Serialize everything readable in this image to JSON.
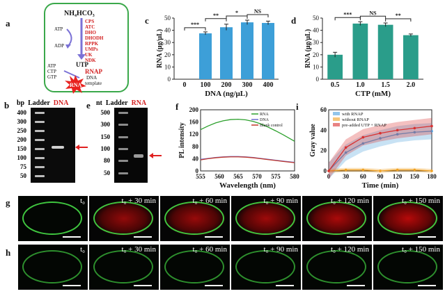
{
  "panel_labels": {
    "a": "a",
    "b": "b",
    "c": "c",
    "d": "d",
    "e": "e",
    "f": "f",
    "g": "g",
    "h": "h",
    "i": "i"
  },
  "panel_a": {
    "substrate": "NH₄HCO₃",
    "enzymes": [
      "CPS",
      "ATC",
      "DHO",
      "DHODH",
      "RPPK",
      "UMPs",
      "UK",
      "NDK"
    ],
    "atp": "ATP",
    "adp": "ADP",
    "utp": "UTP",
    "ntps": [
      "ATP",
      "CTP",
      "GTP"
    ],
    "rnap": "RNAP",
    "dna": "DNA",
    "template": "template",
    "rna": "RNA"
  },
  "panel_b": {
    "bp": "bp",
    "ladder": "Ladder",
    "sample": "DNA",
    "ticks": [
      "400",
      "300",
      "250",
      "200",
      "150",
      "100",
      "75",
      "50"
    ]
  },
  "panel_e": {
    "nt": "nt",
    "ladder": "Ladder",
    "sample": "RNA",
    "ticks": [
      "500",
      "300",
      "150",
      "100",
      "80",
      "50"
    ]
  },
  "chart_data": [
    {
      "id": "c",
      "type": "bar",
      "categories": [
        "0",
        "100",
        "200",
        "300",
        "400"
      ],
      "values": [
        0,
        37.5,
        42.5,
        46.5,
        46.0
      ],
      "errors": [
        0,
        1.2,
        2.5,
        1.8,
        1.5
      ],
      "xlabel": "DNA (ng/μL)",
      "ylabel": "RNA (μg/μL)",
      "ylim": [
        0,
        50
      ],
      "yticks": [
        "0",
        "10",
        "20",
        "30",
        "40",
        "50"
      ],
      "color": "#3d9fd8",
      "significance": [
        "***",
        "**",
        "*",
        "NS"
      ]
    },
    {
      "id": "d",
      "type": "bar",
      "categories": [
        "0.5",
        "1.0",
        "1.5",
        "2.0"
      ],
      "values": [
        20,
        45.5,
        44.5,
        36
      ],
      "errors": [
        2.0,
        1.5,
        1.5,
        1.0
      ],
      "xlabel": "CTP (mM)",
      "ylabel": "RNA (μg/μL)",
      "ylim": [
        0,
        50
      ],
      "yticks": [
        "0",
        "10",
        "20",
        "30",
        "40",
        "50"
      ],
      "color": "#2a9d8a",
      "significance": [
        "***",
        "NS",
        "**"
      ]
    },
    {
      "id": "f",
      "type": "line",
      "xlabel": "Wavelength (nm)",
      "ylabel": "PL intensity",
      "xlim": [
        555,
        580
      ],
      "ylim": [
        0,
        200
      ],
      "xticks": [
        "555",
        "560",
        "565",
        "570",
        "575",
        "580"
      ],
      "yticks": [
        "0",
        "20",
        "40",
        "60",
        "80",
        "100",
        "120",
        "140",
        "160",
        "180",
        "200"
      ],
      "legend": [
        "RNA",
        "DNA",
        "Blank control"
      ],
      "series": [
        {
          "name": "RNA",
          "color": "#2ca02c",
          "x": [
            555,
            557,
            559,
            561,
            563,
            565,
            567,
            569,
            571,
            573,
            575,
            577,
            580
          ],
          "y": [
            135,
            147,
            157,
            164,
            168,
            169,
            167,
            162,
            154,
            143,
            131,
            118,
            97
          ]
        },
        {
          "name": "DNA",
          "color": "#6a6ad0",
          "x": [
            555,
            557,
            559,
            561,
            563,
            565,
            567,
            569,
            571,
            573,
            575,
            577,
            580
          ],
          "y": [
            38,
            41,
            44,
            46,
            47,
            47,
            46,
            44,
            41,
            38,
            35,
            32,
            28
          ]
        },
        {
          "name": "Blank control",
          "color": "#c0392b",
          "x": [
            555,
            557,
            559,
            561,
            563,
            565,
            567,
            569,
            571,
            573,
            575,
            577,
            580
          ],
          "y": [
            36,
            40,
            43,
            45,
            46,
            46,
            45,
            43,
            40,
            37,
            34,
            31,
            27
          ]
        }
      ]
    },
    {
      "id": "i",
      "type": "line",
      "xlabel": "Time (min)",
      "ylabel": "Gray value",
      "xlim": [
        0,
        180
      ],
      "ylim": [
        0,
        60
      ],
      "xticks": [
        "0",
        "30",
        "60",
        "90",
        "120",
        "150",
        "180"
      ],
      "yticks": [
        "0",
        "20",
        "40",
        "60"
      ],
      "legend": [
        "with RNAP",
        "without RNAP",
        "pre-added UTP + RNAP"
      ],
      "series": [
        {
          "name": "with RNAP",
          "color": "#4a9fdc",
          "x": [
            0,
            30,
            60,
            90,
            120,
            150,
            180
          ],
          "y": [
            0,
            18,
            27,
            32,
            36,
            38,
            39
          ]
        },
        {
          "name": "without RNAP",
          "color": "#f0a020",
          "x": [
            0,
            30,
            60,
            90,
            120,
            150,
            180
          ],
          "y": [
            0,
            1,
            1,
            0,
            1,
            1,
            0
          ]
        },
        {
          "name": "pre-added UTP + RNAP",
          "color": "#d93030",
          "x": [
            0,
            30,
            60,
            90,
            120,
            150,
            180
          ],
          "y": [
            0,
            23,
            33,
            37,
            40,
            42,
            44
          ]
        }
      ]
    }
  ],
  "row_g": {
    "labels": [
      "t₀",
      "t₀ + 30 min",
      "t₀ + 60 min",
      "t₀ + 90 min",
      "t₀ + 120 min",
      "t₀ + 150 min"
    ],
    "red_intensity": [
      0,
      0.55,
      0.6,
      0.65,
      0.75,
      0.85
    ]
  },
  "row_h": {
    "labels": [
      "t₀",
      "t₀ + 30 min",
      "t₀ + 60 min",
      "t₀ + 90 min",
      "t₀ + 120 min",
      "t₀ + 150 min"
    ]
  }
}
